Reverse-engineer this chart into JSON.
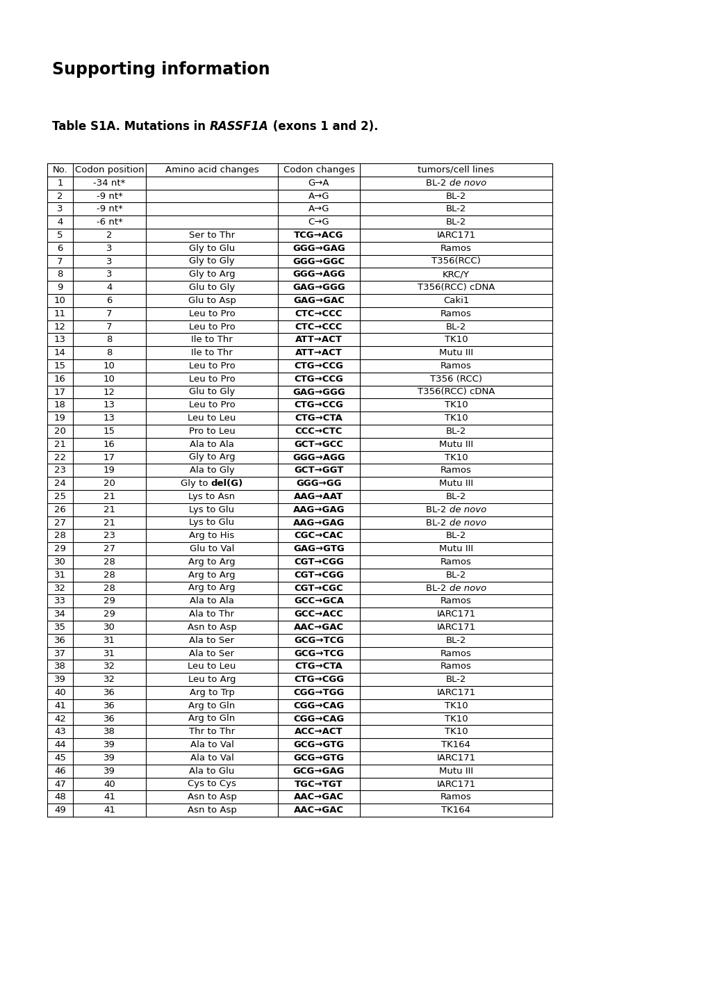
{
  "title_main": "Supporting information",
  "col_headers": [
    "No.",
    "Codon position",
    "Amino acid changes",
    "Codon changes",
    "tumors/cell lines"
  ],
  "rows": [
    [
      "1",
      "-34 nt*",
      "",
      "G→A",
      "BL-2",
      "de novo"
    ],
    [
      "2",
      "-9 nt*",
      "",
      "A→G",
      "BL-2",
      ""
    ],
    [
      "3",
      "-9 nt*",
      "",
      "A→G",
      "BL-2",
      ""
    ],
    [
      "4",
      "-6 nt*",
      "",
      "C→G",
      "BL-2",
      ""
    ],
    [
      "5",
      "2",
      "Ser to Thr",
      "TCG→ACG",
      "IARC171",
      ""
    ],
    [
      "6",
      "3",
      "Gly to Glu",
      "GGG→GAG",
      "Ramos",
      ""
    ],
    [
      "7",
      "3",
      "Gly to Gly",
      "GGG→GGC",
      "T356(RCC)",
      ""
    ],
    [
      "8",
      "3",
      "Gly to Arg",
      "GGG→AGG",
      "KRC/Y",
      ""
    ],
    [
      "9",
      "4",
      "Glu to Gly",
      "GAG→GGG",
      "T356(RCC) cDNA",
      ""
    ],
    [
      "10",
      "6",
      "Glu to Asp",
      "GAG→GAC",
      "Caki1",
      ""
    ],
    [
      "11",
      "7",
      "Leu to Pro",
      "CTC→CCC",
      "Ramos",
      ""
    ],
    [
      "12",
      "7",
      "Leu to Pro",
      "CTC→CCC",
      "BL-2",
      ""
    ],
    [
      "13",
      "8",
      "Ile to Thr",
      "ATT→ACT",
      "TK10",
      ""
    ],
    [
      "14",
      "8",
      "Ile to Thr",
      "ATT→ACT",
      "Mutu III",
      ""
    ],
    [
      "15",
      "10",
      "Leu to Pro",
      "CTG→CCG",
      "Ramos",
      ""
    ],
    [
      "16",
      "10",
      "Leu to Pro",
      "CTG→CCG",
      "T356 (RCC)",
      ""
    ],
    [
      "17",
      "12",
      "Glu to Gly",
      "GAG→GGG",
      "T356(RCC) cDNA",
      ""
    ],
    [
      "18",
      "13",
      "Leu to Pro",
      "CTG→CCG",
      "TK10",
      ""
    ],
    [
      "19",
      "13",
      "Leu to Leu",
      "CTG→CTA",
      "TK10",
      ""
    ],
    [
      "20",
      "15",
      "Pro to Leu",
      "CCC→CTC",
      "BL-2",
      ""
    ],
    [
      "21",
      "16",
      "Ala to Ala",
      "GCT→GCC",
      "Mutu III",
      ""
    ],
    [
      "22",
      "17",
      "Gly to Arg",
      "GGG→AGG",
      "TK10",
      ""
    ],
    [
      "23",
      "19",
      "Ala to Gly",
      "GCT→GGT",
      "Ramos",
      ""
    ],
    [
      "24",
      "20",
      "Gly to del(G)",
      "GGG→GG",
      "Mutu III",
      ""
    ],
    [
      "25",
      "21",
      "Lys to Asn",
      "AAG→AAT",
      "BL-2",
      ""
    ],
    [
      "26",
      "21",
      "Lys to Glu",
      "AAG→GAG",
      "BL-2",
      "de novo"
    ],
    [
      "27",
      "21",
      "Lys to Glu",
      "AAG→GAG",
      "BL-2",
      "de novo"
    ],
    [
      "28",
      "23",
      "Arg to His",
      "CGC→CAC",
      "BL-2",
      ""
    ],
    [
      "29",
      "27",
      "Glu to Val",
      "GAG→GTG",
      "Mutu III",
      ""
    ],
    [
      "30",
      "28",
      "Arg to Arg",
      "CGT→CGG",
      "Ramos",
      ""
    ],
    [
      "31",
      "28",
      "Arg to Arg",
      "CGT→CGG",
      "BL-2",
      ""
    ],
    [
      "32",
      "28",
      "Arg to Arg",
      "CGT→CGC",
      "BL-2",
      "de novo"
    ],
    [
      "33",
      "29",
      "Ala to Ala",
      "GCC→GCA",
      "Ramos",
      ""
    ],
    [
      "34",
      "29",
      "Ala to Thr",
      "GCC→ACC",
      "IARC171",
      ""
    ],
    [
      "35",
      "30",
      "Asn to Asp",
      "AAC→GAC",
      "IARC171",
      ""
    ],
    [
      "36",
      "31",
      "Ala to Ser",
      "GCG→TCG",
      "BL-2",
      ""
    ],
    [
      "37",
      "31",
      "Ala to Ser",
      "GCG→TCG",
      "Ramos",
      ""
    ],
    [
      "38",
      "32",
      "Leu to Leu",
      "CTG→CTA",
      "Ramos",
      ""
    ],
    [
      "39",
      "32",
      "Leu to Arg",
      "CTG→CGG",
      "BL-2",
      ""
    ],
    [
      "40",
      "36",
      "Arg to Trp",
      "CGG→TGG",
      "IARC171",
      ""
    ],
    [
      "41",
      "36",
      "Arg to Gln",
      "CGG→CAG",
      "TK10",
      ""
    ],
    [
      "42",
      "36",
      "Arg to Gln",
      "CGG→CAG",
      "TK10",
      ""
    ],
    [
      "43",
      "38",
      "Thr to Thr",
      "ACC→ACT",
      "TK10",
      ""
    ],
    [
      "44",
      "39",
      "Ala to Val",
      "GCG→GTG",
      "TK164",
      ""
    ],
    [
      "45",
      "39",
      "Ala to Val",
      "GCG→GTG",
      "IARC171",
      ""
    ],
    [
      "46",
      "39",
      "Ala to Glu",
      "GCG→GAG",
      "Mutu III",
      ""
    ],
    [
      "47",
      "40",
      "Cys to Cys",
      "TGC→TGT",
      "IARC171",
      ""
    ],
    [
      "48",
      "41",
      "Asn to Asp",
      "AAC→GAC",
      "Ramos",
      ""
    ],
    [
      "49",
      "41",
      "Asn to Asp",
      "AAC→GAC",
      "TK164",
      ""
    ]
  ],
  "background_color": "#ffffff"
}
